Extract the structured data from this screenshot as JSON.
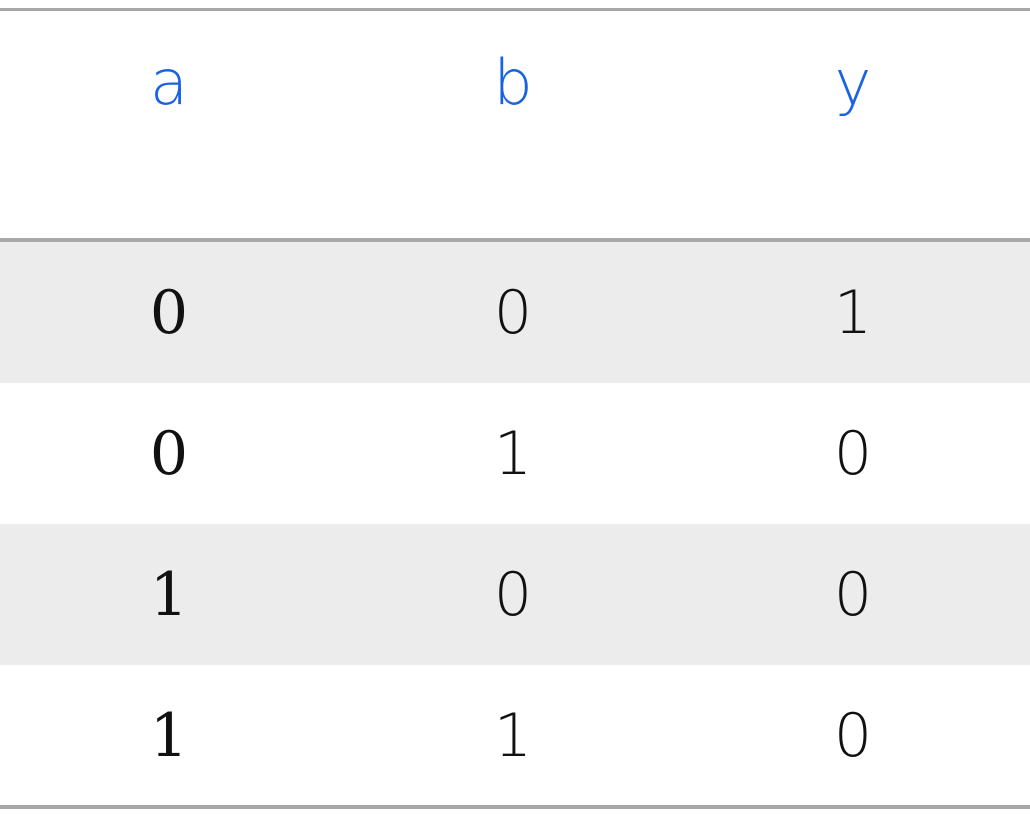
{
  "chart_data": {
    "type": "table",
    "columns": [
      "a",
      "b",
      "y"
    ],
    "rows": [
      [
        "0",
        "0",
        "1"
      ],
      [
        "0",
        "1",
        "0"
      ],
      [
        "1",
        "0",
        "0"
      ],
      [
        "1",
        "1",
        "0"
      ]
    ]
  },
  "colors": {
    "header_text": "#1a63e0",
    "body_text": "#111111",
    "shaded_row": "#ececec",
    "rule": "#a8a8a8"
  }
}
